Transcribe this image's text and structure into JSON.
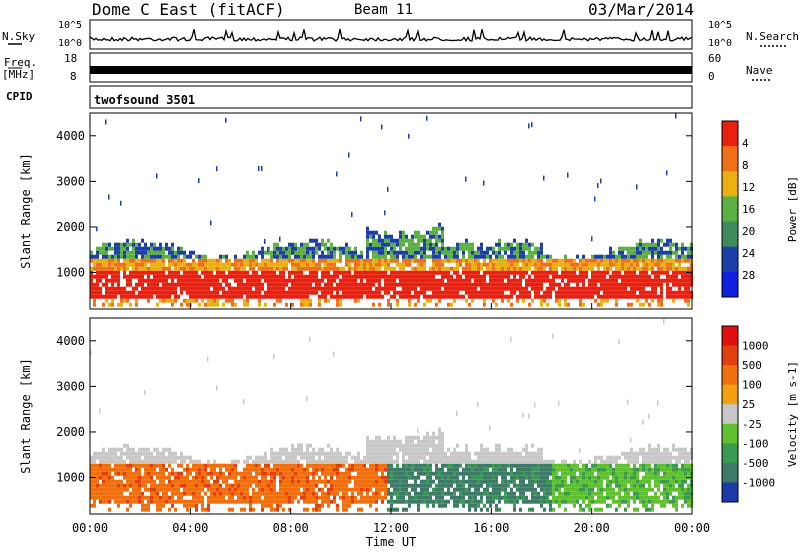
{
  "header": {
    "station": "Dome C East (fitACF)",
    "beam": "Beam 11",
    "date": "03/Mar/2014"
  },
  "top_panels": {
    "nsky_label": "N.Sky",
    "nsky_ticks": [
      "10^5",
      "10^0"
    ],
    "nsearch_label": "N.Search",
    "nsearch_ticks": [
      "10^5",
      "10^0"
    ],
    "freq_label": "Freq.",
    "freq_unit": "[MHz]",
    "freq_ticks": [
      "18",
      "8"
    ],
    "nave_label": "Nave",
    "nave_ticks": [
      "60",
      "0"
    ],
    "cpid_label": "CPID",
    "cpid_value": "twofsound 3501"
  },
  "chart_data": [
    {
      "type": "heatmap",
      "name": "power-panel",
      "ylabel": "Slant Range [km]",
      "ylim": [
        200,
        4500
      ],
      "yticks": [
        1000,
        2000,
        3000,
        4000
      ],
      "xlim": [
        0,
        24
      ],
      "xticks": [
        "00:00",
        "04:00",
        "08:00",
        "12:00",
        "16:00",
        "20:00",
        "00:00"
      ],
      "colorbar": {
        "label": "Power [dB]",
        "ticks": [
          4,
          8,
          12,
          16,
          20,
          24,
          28
        ],
        "colors": [
          "#1020e0",
          "#1c3ea8",
          "#3d8a5a",
          "#5ab040",
          "#e8b010",
          "#f07018",
          "#e82010"
        ]
      }
    },
    {
      "type": "heatmap",
      "name": "velocity-panel",
      "ylabel": "Slant Range [km]",
      "ylim": [
        200,
        4500
      ],
      "yticks": [
        1000,
        2000,
        3000,
        4000
      ],
      "xlim": [
        0,
        24
      ],
      "xticks": [
        "00:00",
        "04:00",
        "08:00",
        "12:00",
        "16:00",
        "20:00",
        "00:00"
      ],
      "xlabel": "Time UT",
      "colorbar": {
        "label": "Velocity [m s-1]",
        "ticks": [
          "1000",
          "500",
          "100",
          "25",
          "-25",
          "-100",
          "-500",
          "-1000"
        ],
        "colors": [
          "#1c3aa8",
          "#3d7a68",
          "#3a9a50",
          "#60c030",
          "#c8c8c8",
          "#f0a010",
          "#f07010",
          "#e04010",
          "#e01010"
        ]
      }
    }
  ]
}
